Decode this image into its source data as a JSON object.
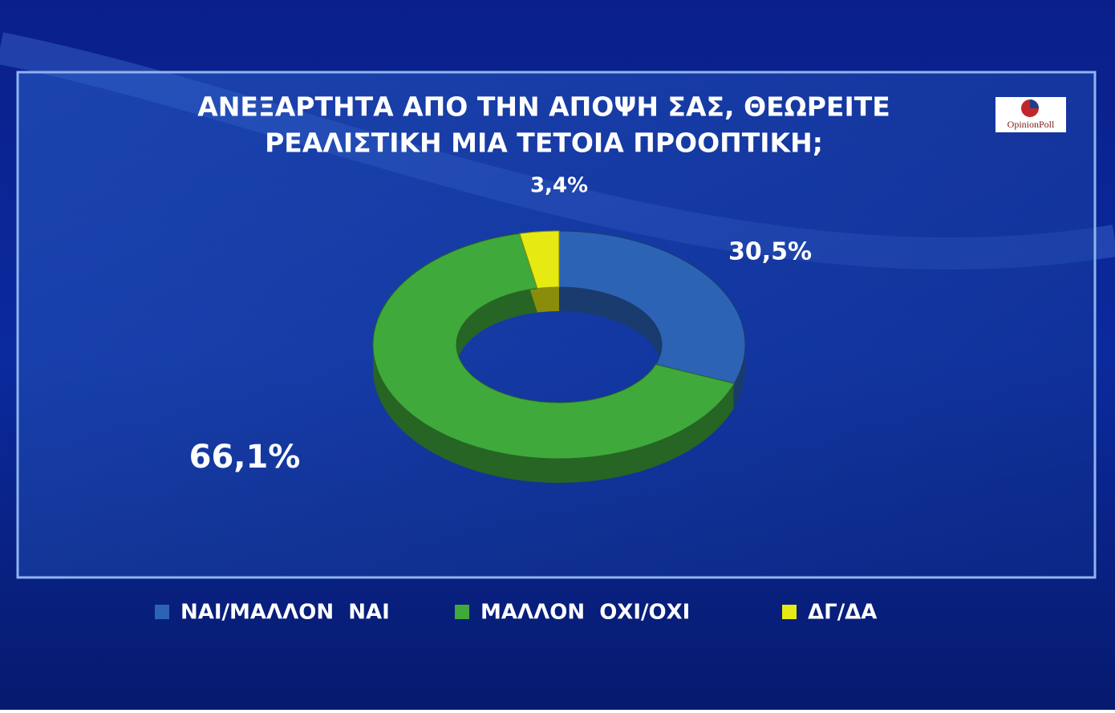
{
  "logo": "OpinionPoll",
  "chart_data": {
    "type": "donut",
    "title": [
      "ΑΝΕΞΑΡΤΗΤΑ ΑΠΟ ΤΗΝ ΑΠΟΨΗ ΣΑΣ, ΘΕΩΡΕΙΤΕ",
      "ΡΕΑΛΙΣΤΙΚΗ ΜΙΑ ΤΕΤΟΙΑ ΠΡΟΟΠΤΙΚΗ;"
    ],
    "categories": [
      "ΝΑΙ/ΜΑΛΛΟΝ  ΝΑΙ",
      "ΜΑΛΛΟΝ  ΟΧΙ/ΟΧΙ",
      "ΔΓ/ΔΑ"
    ],
    "values": [
      30.5,
      66.1,
      3.4
    ],
    "value_labels": [
      "30,5%",
      "66,1%",
      "3,4%"
    ],
    "colors": [
      "#2c63b5",
      "#3fa93c",
      "#e6ea12"
    ]
  }
}
